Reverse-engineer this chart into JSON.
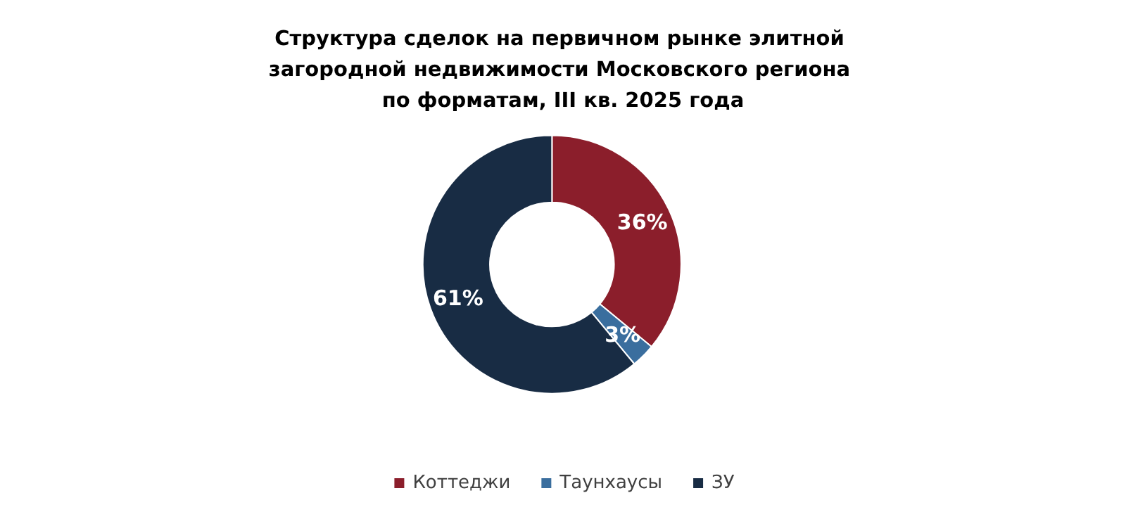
{
  "chart_data": {
    "type": "donut",
    "title": "Структура сделок на первичном рынке элитной загородной недвижимости Московского региона по форматам, III кв. 2025 года",
    "categories": [
      "Коттеджи",
      "Таунхаусы",
      "ЗУ"
    ],
    "values": [
      36,
      3,
      61
    ],
    "colors": [
      "#8b1e2b",
      "#3a6e9e",
      "#182c44"
    ],
    "value_labels": [
      "36%",
      "3%",
      "61%"
    ],
    "legend": "bottom"
  }
}
